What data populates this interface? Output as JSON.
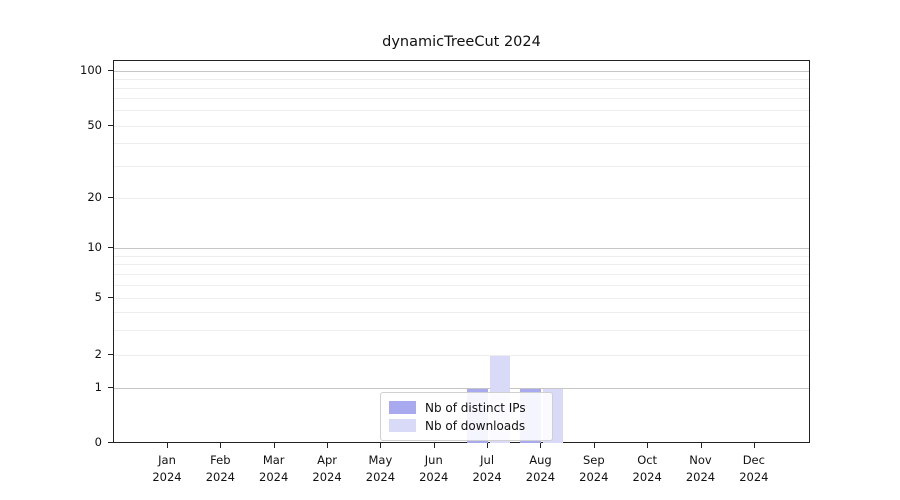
{
  "title": "dynamicTreeCut 2024",
  "chart_data": {
    "type": "bar",
    "title": "dynamicTreeCut 2024",
    "categories": [
      "Jan 2024",
      "Feb 2024",
      "Mar 2024",
      "Apr 2024",
      "May 2024",
      "Jun 2024",
      "Jul 2024",
      "Aug 2024",
      "Sep 2024",
      "Oct 2024",
      "Nov 2024",
      "Dec 2024"
    ],
    "series": [
      {
        "name": "Nb of distinct IPs",
        "color": "#a9a9f0",
        "values": [
          0,
          0,
          0,
          0,
          0,
          0,
          1,
          1,
          0,
          0,
          0,
          0
        ]
      },
      {
        "name": "Nb of downloads",
        "color": "#d9d9f8",
        "values": [
          0,
          0,
          0,
          0,
          0,
          0,
          2,
          1,
          0,
          0,
          0,
          0
        ]
      }
    ],
    "yscale": "log-like",
    "ytick_labels": [
      "100",
      "50",
      "20",
      "10",
      "5",
      "2",
      "1",
      "0"
    ],
    "yticks": [
      100,
      50,
      20,
      10,
      5,
      2,
      1,
      0
    ],
    "ylim": [
      0,
      115
    ],
    "grid": "horizontal",
    "legend_position": "lower center",
    "colors": {
      "distinct_ips": "#a9a9f0",
      "downloads": "#d9d9f8",
      "grid_major": "#c6c6c6",
      "grid_minor": "#ededed",
      "axis": "#222222"
    }
  }
}
